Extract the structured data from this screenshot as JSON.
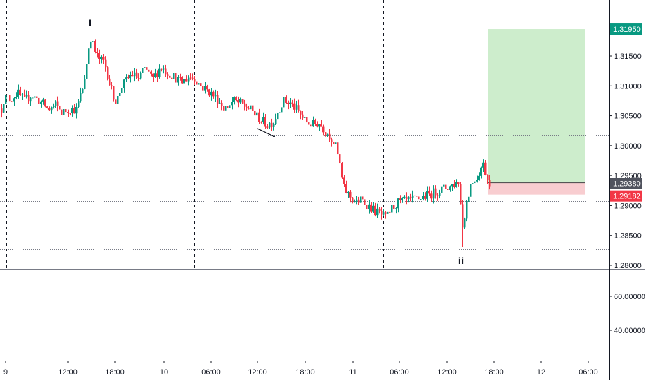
{
  "chart_data": {
    "type": "candlestick",
    "title": "",
    "price_axis": {
      "ticks": [
        "1.31500",
        "1.31000",
        "1.30500",
        "1.30000",
        "1.29500",
        "1.29000",
        "1.28500",
        "1.28000"
      ],
      "range": [
        1.2792,
        1.3242
      ]
    },
    "indicator_axis": {
      "ticks": [
        "60.00000",
        "40.00000"
      ],
      "range": [
        20,
        80
      ]
    },
    "time_axis": {
      "labels": [
        "9",
        "12:00",
        "18:00",
        "10",
        "06:00",
        "12:00",
        "18:00",
        "11",
        "06:00",
        "12:00",
        "18:00",
        "12",
        "06:00"
      ]
    },
    "trade": {
      "take_profit": "1.31950",
      "entry": "1.29380",
      "stop_loss": "1.29182"
    },
    "markers": [
      "i",
      "ii"
    ],
    "horizontal_levels": [
      1.30885,
      1.30175,
      1.29615,
      1.29075,
      1.28265
    ],
    "series": [
      {
        "name": "",
        "type": "candlestick",
        "ohlc_waypoints": [
          [
            0,
            1.3052
          ],
          [
            6,
            1.3082
          ],
          [
            15,
            1.3078
          ],
          [
            25,
            1.3088
          ],
          [
            35,
            1.3075
          ],
          [
            45,
            1.3085
          ],
          [
            60,
            1.3072
          ],
          [
            70,
            1.306
          ],
          [
            80,
            1.3068
          ],
          [
            90,
            1.3055
          ],
          [
            100,
            1.3062
          ],
          [
            110,
            1.306
          ],
          [
            115,
            1.308
          ],
          [
            120,
            1.31
          ],
          [
            126,
            1.3145
          ],
          [
            130,
            1.3185
          ],
          [
            136,
            1.316
          ],
          [
            142,
            1.3145
          ],
          [
            150,
            1.314
          ],
          [
            155,
            1.312
          ],
          [
            160,
            1.3095
          ],
          [
            168,
            1.3072
          ],
          [
            175,
            1.3098
          ],
          [
            182,
            1.3108
          ],
          [
            190,
            1.312
          ],
          [
            200,
            1.3112
          ],
          [
            210,
            1.313
          ],
          [
            220,
            1.311
          ],
          [
            232,
            1.3132
          ],
          [
            242,
            1.3122
          ],
          [
            252,
            1.3115
          ],
          [
            262,
            1.3105
          ],
          [
            272,
            1.3115
          ],
          [
            282,
            1.3112
          ],
          [
            290,
            1.31
          ],
          [
            300,
            1.3092
          ],
          [
            312,
            1.308
          ],
          [
            325,
            1.3062
          ],
          [
            338,
            1.3075
          ],
          [
            350,
            1.3068
          ],
          [
            362,
            1.306
          ],
          [
            375,
            1.3045
          ],
          [
            385,
            1.3035
          ],
          [
            395,
            1.304
          ],
          [
            402,
            1.306
          ],
          [
            410,
            1.3075
          ],
          [
            420,
            1.307
          ],
          [
            430,
            1.3058
          ],
          [
            440,
            1.3042
          ],
          [
            450,
            1.3035
          ],
          [
            460,
            1.3038
          ],
          [
            470,
            1.3025
          ],
          [
            478,
            1.3015
          ],
          [
            485,
            1.2998
          ],
          [
            490,
            1.2975
          ],
          [
            496,
            1.293
          ],
          [
            502,
            1.292
          ],
          [
            508,
            1.2912
          ],
          [
            515,
            1.2905
          ],
          [
            522,
            1.291
          ],
          [
            530,
            1.2902
          ],
          [
            540,
            1.2892
          ],
          [
            550,
            1.2885
          ],
          [
            558,
            1.2878
          ],
          [
            565,
            1.2895
          ],
          [
            575,
            1.2905
          ],
          [
            590,
            1.2908
          ],
          [
            605,
            1.2912
          ],
          [
            620,
            1.2918
          ],
          [
            635,
            1.2926
          ],
          [
            650,
            1.2932
          ],
          [
            662,
            1.294
          ],
          [
            668,
            1.2865
          ],
          [
            674,
            1.2905
          ],
          [
            680,
            1.2935
          ],
          [
            686,
            1.2945
          ],
          [
            690,
            1.2948
          ],
          [
            694,
            1.2962
          ],
          [
            698,
            1.2968
          ],
          [
            703,
            1.2948
          ],
          [
            708,
            1.2938
          ]
        ],
        "low_spike": 1.283
      }
    ],
    "grid": false,
    "legend": "none"
  }
}
